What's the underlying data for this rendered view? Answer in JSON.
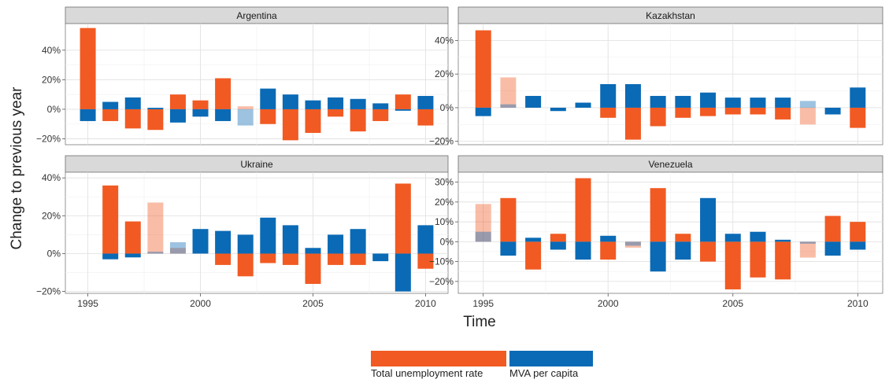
{
  "chart_data": {
    "type": "bar",
    "ylabel": "Change to previous year",
    "xlabel": "Time",
    "xlim": [
      1994,
      2011
    ],
    "x_ticks": [
      1995,
      2000,
      2005,
      2010
    ],
    "x_tick_labels": [
      "1995",
      "2000",
      "2005",
      "2010"
    ],
    "grid": true,
    "legend_position": "bottom",
    "series": [
      {
        "name": "Total unemployment rate",
        "color": "#f15a22"
      },
      {
        "name": "MVA per capita",
        "color": "#0a6ab5"
      }
    ],
    "panels": [
      {
        "title": "Argentina",
        "ylim": [
          -24,
          58
        ],
        "y_ticks": [
          -20,
          0,
          20,
          40
        ],
        "y_tick_labels": [
          "−20%",
          "0%",
          "20%",
          "40%"
        ],
        "x": [
          1995,
          1996,
          1997,
          1998,
          1999,
          2000,
          2001,
          2002,
          2003,
          2004,
          2005,
          2006,
          2007,
          2008,
          2009,
          2010
        ],
        "unemployment": [
          55,
          -8,
          -13,
          -14,
          10,
          6,
          21,
          2,
          -10,
          -21,
          -16,
          -5,
          -15,
          -8,
          10,
          -11
        ],
        "mva": [
          -8,
          5,
          8,
          1,
          -9,
          -5,
          -8,
          -11,
          14,
          10,
          6,
          8,
          7,
          4,
          -1,
          9
        ],
        "faded": [
          2002
        ]
      },
      {
        "title": "Kazakhstan",
        "ylim": [
          -22,
          50
        ],
        "y_ticks": [
          -20,
          0,
          20,
          40
        ],
        "y_tick_labels": [
          "−20%",
          "0%",
          "20%",
          "40%"
        ],
        "x": [
          1995,
          1996,
          1997,
          1998,
          1999,
          2000,
          2001,
          2002,
          2003,
          2004,
          2005,
          2006,
          2007,
          2008,
          2009,
          2010
        ],
        "unemployment": [
          46,
          18,
          0,
          0,
          0,
          -6,
          -19,
          -11,
          -6,
          -5,
          -4,
          -4,
          -7,
          -10,
          0,
          -12
        ],
        "mva": [
          -5,
          2,
          7,
          -2,
          3,
          14,
          14,
          7,
          7,
          9,
          6,
          6,
          6,
          4,
          -4,
          12
        ],
        "faded": [
          1996,
          2008
        ]
      },
      {
        "title": "Ukraine",
        "ylim": [
          -21,
          43
        ],
        "y_ticks": [
          -20,
          0,
          20,
          40
        ],
        "y_tick_labels": [
          "−20%",
          "0%",
          "20%",
          "40%"
        ],
        "x": [
          1996,
          1997,
          1998,
          1999,
          2000,
          2001,
          2002,
          2003,
          2004,
          2005,
          2006,
          2007,
          2008,
          2009,
          2010
        ],
        "unemployment": [
          36,
          17,
          27,
          3,
          0,
          -6,
          -12,
          -5,
          -6,
          -16,
          -6,
          -6,
          0,
          37,
          -8
        ],
        "mva": [
          -3,
          -2,
          1,
          6,
          13,
          12,
          10,
          19,
          15,
          3,
          10,
          13,
          -4,
          -20,
          15
        ],
        "faded": [
          1998,
          1999
        ]
      },
      {
        "title": "Venezuela",
        "ylim": [
          -26,
          35
        ],
        "y_ticks": [
          -20,
          -10,
          0,
          10,
          20,
          30
        ],
        "y_tick_labels": [
          "−20%",
          "−10%",
          "0%",
          "10%",
          "20%",
          "30%"
        ],
        "x": [
          1995,
          1996,
          1997,
          1998,
          1999,
          2000,
          2001,
          2002,
          2003,
          2004,
          2005,
          2006,
          2007,
          2008,
          2009,
          2010
        ],
        "unemployment": [
          19,
          22,
          -14,
          4,
          32,
          -9,
          -3,
          27,
          4,
          -10,
          -24,
          -18,
          -19,
          -8,
          13,
          10
        ],
        "mva": [
          5,
          -7,
          2,
          -4,
          -9,
          3,
          -2,
          -15,
          -9,
          22,
          4,
          5,
          1,
          -1,
          -7,
          -4
        ],
        "faded": [
          1995,
          2001,
          2008
        ]
      }
    ]
  }
}
